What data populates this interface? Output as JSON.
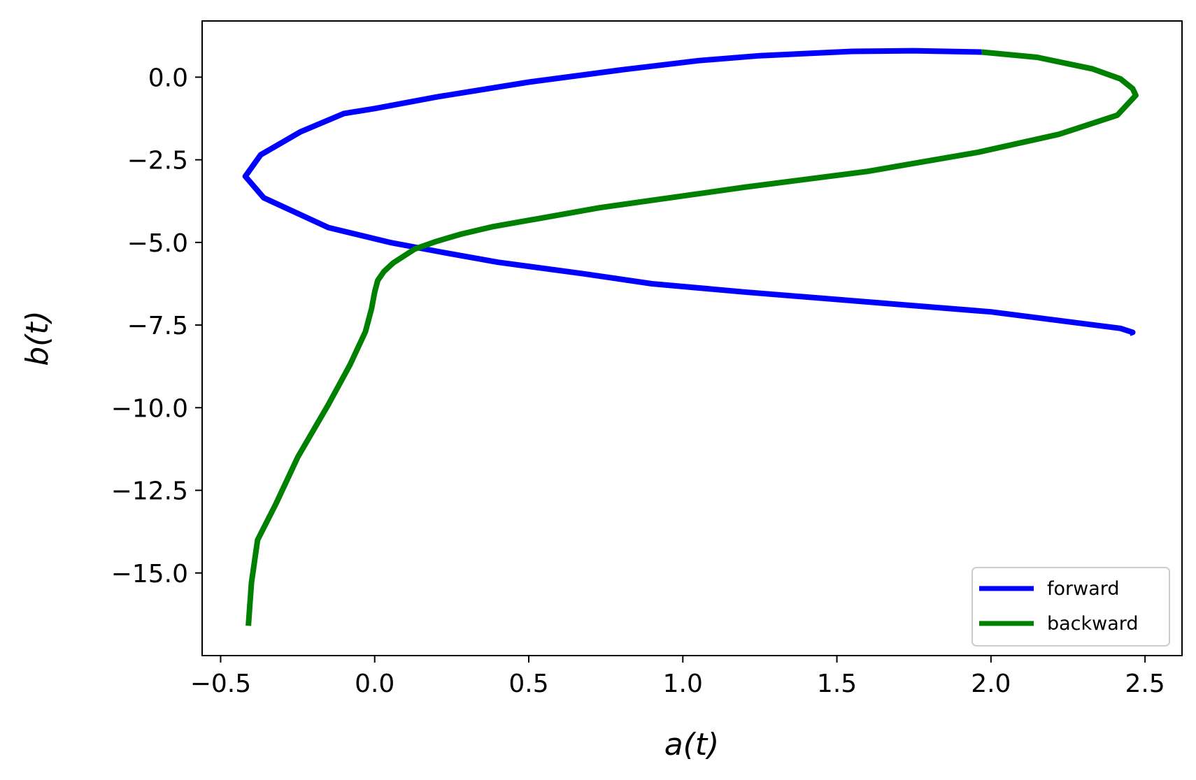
{
  "chart_data": {
    "type": "line",
    "title": "",
    "xlabel": "a(t)",
    "ylabel": "b(t)",
    "xlim": [
      -0.56,
      2.62
    ],
    "ylim": [
      -17.5,
      1.7
    ],
    "xticks": [
      -0.5,
      0.0,
      0.5,
      1.0,
      1.5,
      2.0,
      2.5
    ],
    "xtick_labels": [
      "−0.5",
      "0.0",
      "0.5",
      "1.0",
      "1.5",
      "2.0",
      "2.5"
    ],
    "yticks": [
      0.0,
      -2.5,
      -5.0,
      -7.5,
      -10.0,
      -12.5,
      -15.0
    ],
    "ytick_labels": [
      "0.0",
      "−2.5",
      "−5.0",
      "−7.5",
      "−10.0",
      "−12.5",
      "−15.0"
    ],
    "grid": false,
    "legend_position": "lower-right",
    "series": [
      {
        "name": "forward",
        "color": "#0000ff",
        "points": [
          [
            2.45,
            -7.75
          ],
          [
            2.46,
            -7.72
          ],
          [
            2.42,
            -7.6
          ],
          [
            2.0,
            -7.1
          ],
          [
            1.6,
            -6.8
          ],
          [
            1.2,
            -6.5
          ],
          [
            0.9,
            -6.25
          ],
          [
            0.68,
            -5.95
          ],
          [
            0.4,
            -5.6
          ],
          [
            0.22,
            -5.3
          ],
          [
            0.05,
            -5.0
          ],
          [
            -0.15,
            -4.55
          ],
          [
            -0.36,
            -3.65
          ],
          [
            -0.42,
            -3.0
          ],
          [
            -0.37,
            -2.35
          ],
          [
            -0.24,
            -1.65
          ],
          [
            -0.1,
            -1.1
          ],
          [
            0.0,
            -0.95
          ],
          [
            0.2,
            -0.6
          ],
          [
            0.5,
            -0.15
          ],
          [
            0.8,
            0.22
          ],
          [
            1.05,
            0.5
          ],
          [
            1.25,
            0.65
          ],
          [
            1.55,
            0.78
          ],
          [
            1.75,
            0.8
          ],
          [
            1.97,
            0.76
          ]
        ]
      },
      {
        "name": "backward",
        "color": "#008000",
        "points": [
          [
            1.97,
            0.76
          ],
          [
            2.15,
            0.6
          ],
          [
            2.33,
            0.25
          ],
          [
            2.42,
            -0.05
          ],
          [
            2.46,
            -0.35
          ],
          [
            2.47,
            -0.55
          ],
          [
            2.41,
            -1.15
          ],
          [
            2.22,
            -1.73
          ],
          [
            1.96,
            -2.27
          ],
          [
            1.6,
            -2.85
          ],
          [
            1.2,
            -3.33
          ],
          [
            0.73,
            -3.95
          ],
          [
            0.38,
            -4.53
          ],
          [
            0.28,
            -4.75
          ],
          [
            0.2,
            -4.97
          ],
          [
            0.13,
            -5.2
          ],
          [
            0.06,
            -5.62
          ],
          [
            0.03,
            -5.88
          ],
          [
            0.01,
            -6.15
          ],
          [
            0.0,
            -6.5
          ],
          [
            -0.01,
            -7.0
          ],
          [
            -0.03,
            -7.7
          ],
          [
            -0.08,
            -8.7
          ],
          [
            -0.15,
            -9.9
          ],
          [
            -0.25,
            -11.5
          ],
          [
            -0.32,
            -12.9
          ],
          [
            -0.38,
            -14.0
          ],
          [
            -0.4,
            -15.3
          ],
          [
            -0.41,
            -16.6
          ]
        ]
      }
    ]
  }
}
